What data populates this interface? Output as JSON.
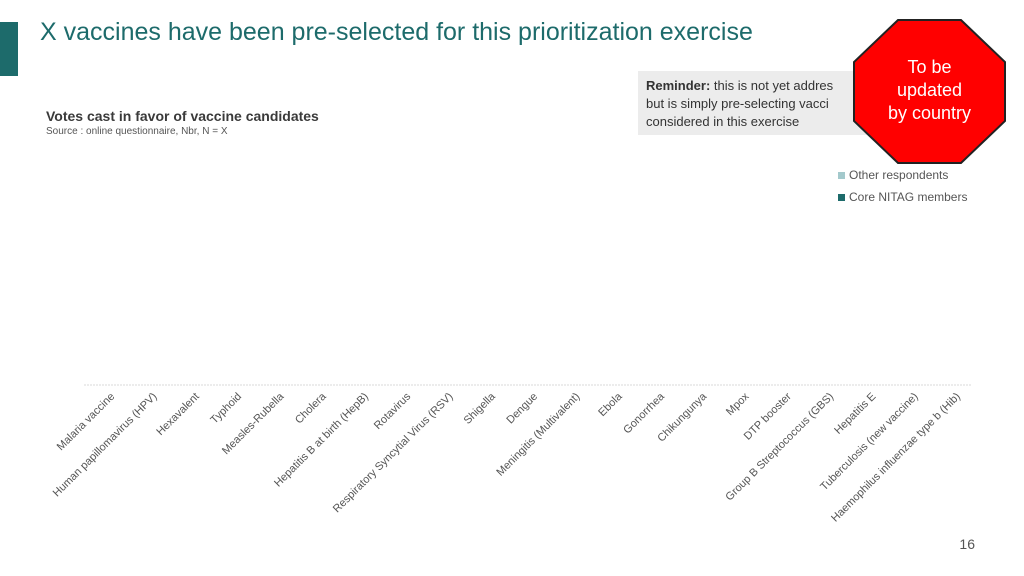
{
  "slide": {
    "title": "X vaccines have been pre-selected for this prioritization exercise",
    "page_number": "16",
    "accent_color": "#1d6b6b"
  },
  "reminder": {
    "label": "Reminder:",
    "lines": [
      "this is not yet addres",
      "but is simply pre-selecting vacci",
      "considered in this exercise"
    ]
  },
  "stamp": {
    "lines": [
      "To be",
      "updated",
      "by country"
    ],
    "color": "#ff0000"
  },
  "chart_data": {
    "type": "bar",
    "stacked": true,
    "title": "Votes cast in favor of vaccine candidates",
    "subtitle": "Source : online questionnaire, Nbr, N = X",
    "categories": [
      "Malaria vaccine",
      "Human papillomavirus (HPV)",
      "Hexavalent",
      "Typhoid",
      "Measles-Rubella",
      "Cholera",
      "Hepatitis B at birth (HepB)",
      "Rotavirus",
      "Respiratory Syncytial Virus (RSV)",
      "Shigella",
      "Dengue",
      "Meningitis (Multivalent)",
      "Ebola",
      "Gonorrhea",
      "Chikungunya",
      "Mpox",
      "DTP booster",
      "Group B Streptococcus (GBS)",
      "Hepatitis E",
      "Tuberculosis (new vaccine)",
      "Haemophilus influenzae type b (Hib)"
    ],
    "series": [
      {
        "name": "Core NITAG members",
        "color": "#1d6b6b",
        "values": [
          0,
          0,
          0,
          0,
          0,
          0,
          0,
          0,
          0,
          0,
          0,
          0,
          0,
          0,
          0,
          0,
          0,
          0,
          0,
          0,
          0
        ]
      },
      {
        "name": "Other respondents",
        "color": "#a3c9cc",
        "values": [
          0,
          0,
          0,
          0,
          0,
          0,
          0,
          0,
          0,
          0,
          0,
          0,
          0,
          0,
          0,
          0,
          0,
          0,
          0,
          0,
          0
        ]
      }
    ],
    "legend_position": "top-right",
    "grid": false
  }
}
